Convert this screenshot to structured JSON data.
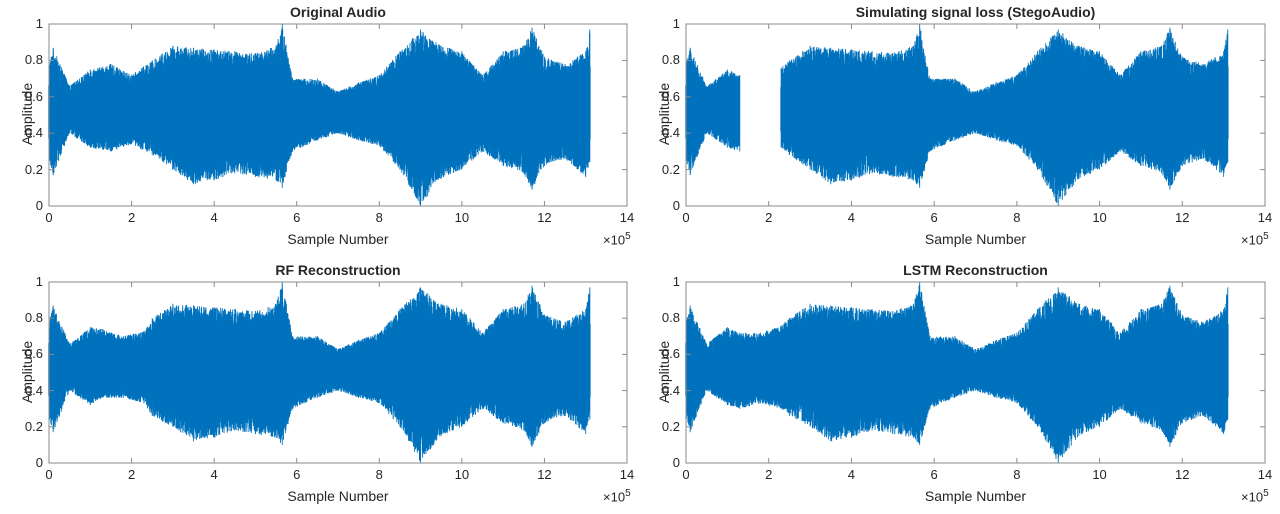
{
  "colors": {
    "line": "#0072BD",
    "axis": "#262626",
    "frame": "#8a8a8a"
  },
  "chart_data": [
    {
      "type": "line",
      "title": "Original Audio",
      "xlabel": "Sample Number",
      "ylabel": "Amplitude",
      "xlim": [
        0,
        14
      ],
      "ylim": [
        0,
        1
      ],
      "x_multiplier": "×10^5",
      "xticks": [
        0,
        2,
        4,
        6,
        8,
        10,
        12,
        14
      ],
      "yticks": [
        0,
        0.2,
        0.4,
        0.6,
        0.8,
        1
      ],
      "grid": false,
      "signal_range_x": [
        0,
        13.1
      ],
      "missing_ranges": [],
      "envelope": {
        "x": [
          0,
          0.1,
          0.5,
          1,
          1.5,
          2,
          2.5,
          3,
          3.5,
          4,
          4.5,
          5,
          5.5,
          5.65,
          5.9,
          6.5,
          7,
          7.5,
          8,
          8.5,
          9,
          9.5,
          10,
          10.5,
          11,
          11.5,
          11.7,
          12,
          12.5,
          13,
          13.1
        ],
        "upper": [
          0.78,
          0.87,
          0.66,
          0.75,
          0.78,
          0.72,
          0.8,
          0.88,
          0.87,
          0.86,
          0.85,
          0.84,
          0.88,
          1.0,
          0.7,
          0.7,
          0.63,
          0.68,
          0.72,
          0.85,
          0.97,
          0.88,
          0.85,
          0.72,
          0.85,
          0.88,
          0.98,
          0.82,
          0.78,
          0.85,
          0.97
        ],
        "lower": [
          0.25,
          0.17,
          0.4,
          0.32,
          0.3,
          0.34,
          0.28,
          0.2,
          0.12,
          0.14,
          0.18,
          0.16,
          0.14,
          0.1,
          0.3,
          0.36,
          0.4,
          0.36,
          0.33,
          0.2,
          0.0,
          0.15,
          0.2,
          0.3,
          0.22,
          0.18,
          0.09,
          0.22,
          0.26,
          0.16,
          0.24
        ]
      }
    },
    {
      "type": "line",
      "title": "Simulating signal loss (StegoAudio)",
      "xlabel": "Sample Number",
      "ylabel": "Amplitude",
      "xlim": [
        0,
        14
      ],
      "ylim": [
        0,
        1
      ],
      "x_multiplier": "×10^5",
      "xticks": [
        0,
        2,
        4,
        6,
        8,
        10,
        12,
        14
      ],
      "yticks": [
        0,
        0.2,
        0.4,
        0.6,
        0.8,
        1
      ],
      "grid": false,
      "signal_range_x": [
        0,
        13.1
      ],
      "missing_ranges": [
        [
          1.3,
          2.3
        ]
      ],
      "envelope": {
        "x": [
          0,
          0.1,
          0.5,
          1,
          1.3,
          2.3,
          2.5,
          3,
          3.5,
          4,
          4.5,
          5,
          5.5,
          5.65,
          5.9,
          6.5,
          7,
          7.5,
          8,
          8.5,
          9,
          9.5,
          10,
          10.5,
          11,
          11.5,
          11.7,
          12,
          12.5,
          13,
          13.1
        ],
        "upper": [
          0.78,
          0.87,
          0.66,
          0.75,
          0.72,
          0.76,
          0.8,
          0.88,
          0.87,
          0.86,
          0.85,
          0.84,
          0.88,
          1.0,
          0.7,
          0.7,
          0.63,
          0.68,
          0.72,
          0.85,
          0.97,
          0.88,
          0.85,
          0.72,
          0.85,
          0.88,
          0.98,
          0.82,
          0.78,
          0.85,
          0.97
        ],
        "lower": [
          0.25,
          0.17,
          0.4,
          0.32,
          0.3,
          0.32,
          0.28,
          0.2,
          0.12,
          0.14,
          0.18,
          0.16,
          0.14,
          0.1,
          0.3,
          0.36,
          0.4,
          0.36,
          0.33,
          0.2,
          0.0,
          0.15,
          0.2,
          0.3,
          0.22,
          0.18,
          0.09,
          0.22,
          0.26,
          0.16,
          0.24
        ]
      }
    },
    {
      "type": "line",
      "title": "RF Reconstruction",
      "xlabel": "Sample Number",
      "ylabel": "Amplitude",
      "xlim": [
        0,
        14
      ],
      "ylim": [
        0,
        1
      ],
      "x_multiplier": "×10^5",
      "xticks": [
        0,
        2,
        4,
        6,
        8,
        10,
        12,
        14
      ],
      "yticks": [
        0,
        0.2,
        0.4,
        0.6,
        0.8,
        1
      ],
      "grid": false,
      "signal_range_x": [
        0,
        13.1
      ],
      "missing_ranges": [],
      "envelope": {
        "x": [
          0,
          0.1,
          0.5,
          1,
          1.3,
          1.8,
          2.3,
          2.5,
          3,
          3.5,
          4,
          4.5,
          5,
          5.5,
          5.65,
          5.9,
          6.5,
          7,
          7.5,
          8,
          8.5,
          9,
          9.5,
          10,
          10.5,
          11,
          11.5,
          11.7,
          12,
          12.5,
          13,
          13.1
        ],
        "upper": [
          0.78,
          0.87,
          0.66,
          0.75,
          0.74,
          0.7,
          0.73,
          0.8,
          0.88,
          0.87,
          0.86,
          0.85,
          0.84,
          0.88,
          1.0,
          0.7,
          0.7,
          0.63,
          0.68,
          0.72,
          0.85,
          0.97,
          0.88,
          0.85,
          0.72,
          0.85,
          0.88,
          0.98,
          0.82,
          0.78,
          0.85,
          0.97
        ],
        "lower": [
          0.25,
          0.17,
          0.4,
          0.32,
          0.36,
          0.36,
          0.33,
          0.26,
          0.2,
          0.12,
          0.14,
          0.18,
          0.16,
          0.14,
          0.1,
          0.3,
          0.36,
          0.4,
          0.36,
          0.33,
          0.2,
          0.0,
          0.15,
          0.2,
          0.3,
          0.22,
          0.18,
          0.09,
          0.22,
          0.26,
          0.16,
          0.24
        ]
      }
    },
    {
      "type": "line",
      "title": "LSTM Reconstruction",
      "xlabel": "Sample Number",
      "ylabel": "Amplitude",
      "xlim": [
        0,
        14
      ],
      "ylim": [
        0,
        1
      ],
      "x_multiplier": "×10^5",
      "xticks": [
        0,
        2,
        4,
        6,
        8,
        10,
        12,
        14
      ],
      "yticks": [
        0,
        0.2,
        0.4,
        0.6,
        0.8,
        1
      ],
      "grid": false,
      "signal_range_x": [
        0,
        13.1
      ],
      "missing_ranges": [],
      "envelope": {
        "x": [
          0,
          0.1,
          0.5,
          1,
          1.3,
          1.8,
          2.3,
          2.5,
          3,
          3.5,
          4,
          4.5,
          5,
          5.5,
          5.65,
          5.9,
          6.5,
          7,
          7.5,
          8,
          8.5,
          9,
          9.5,
          10,
          10.5,
          11,
          11.5,
          11.7,
          12,
          12.5,
          13,
          13.1
        ],
        "upper": [
          0.78,
          0.87,
          0.66,
          0.75,
          0.72,
          0.72,
          0.76,
          0.8,
          0.88,
          0.87,
          0.86,
          0.85,
          0.84,
          0.88,
          1.0,
          0.7,
          0.7,
          0.63,
          0.68,
          0.72,
          0.85,
          0.97,
          0.88,
          0.85,
          0.72,
          0.85,
          0.88,
          0.98,
          0.82,
          0.78,
          0.85,
          0.97
        ],
        "lower": [
          0.25,
          0.17,
          0.4,
          0.32,
          0.3,
          0.33,
          0.3,
          0.26,
          0.2,
          0.12,
          0.14,
          0.18,
          0.16,
          0.14,
          0.1,
          0.3,
          0.36,
          0.4,
          0.36,
          0.33,
          0.2,
          0.0,
          0.15,
          0.2,
          0.3,
          0.22,
          0.18,
          0.09,
          0.22,
          0.26,
          0.16,
          0.24
        ]
      }
    }
  ],
  "panels": [
    {
      "title": "Original Audio",
      "xlabel": "Sample Number",
      "ylabel": "Amplitude",
      "mult_base": "×10",
      "mult_exp": "5"
    },
    {
      "title": "Simulating signal loss (StegoAudio)",
      "xlabel": "Sample Number",
      "ylabel": "Amplitude",
      "mult_base": "×10",
      "mult_exp": "5"
    },
    {
      "title": "RF Reconstruction",
      "xlabel": "Sample Number",
      "ylabel": "Amplitude",
      "mult_base": "×10",
      "mult_exp": "5"
    },
    {
      "title": "LSTM Reconstruction",
      "xlabel": "Sample Number",
      "ylabel": "Amplitude",
      "mult_base": "×10",
      "mult_exp": "5"
    }
  ]
}
